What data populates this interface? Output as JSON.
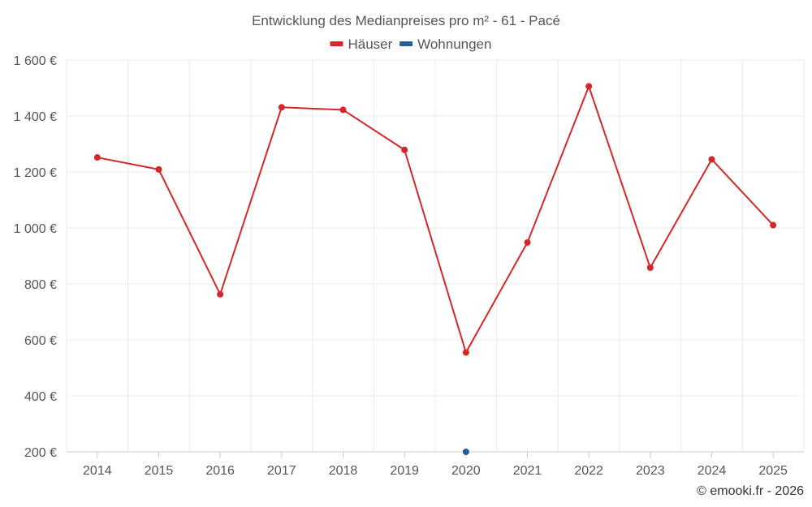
{
  "colors": {
    "background": "#ffffff",
    "grid": "#ebebeb",
    "axis": "#cccccc",
    "text": "#555555"
  },
  "credit": "© emooki.fr - 2026",
  "chart_data": {
    "type": "line",
    "title": "Entwicklung des Medianpreises pro m² - 61 - Pacé",
    "xlabel": "",
    "ylabel": "",
    "categories": [
      "2014",
      "2015",
      "2016",
      "2017",
      "2018",
      "2019",
      "2020",
      "2021",
      "2022",
      "2023",
      "2024",
      "2025"
    ],
    "ylim": [
      200,
      1600
    ],
    "yticks": [
      200,
      400,
      600,
      800,
      1000,
      1200,
      1400,
      1600
    ],
    "ytick_labels": [
      "200 €",
      "400 €",
      "600 €",
      "800 €",
      "1 000 €",
      "1 200 €",
      "1 400 €",
      "1 600 €"
    ],
    "grid": true,
    "legend": "top-center",
    "series": [
      {
        "name": "Häuser",
        "color": "#d62728",
        "values": [
          1252,
          1209,
          763,
          1431,
          1422,
          1279,
          555,
          948,
          1506,
          858,
          1245,
          1010
        ]
      },
      {
        "name": "Wohnungen",
        "color": "#1f5f9a",
        "values": [
          null,
          null,
          null,
          null,
          null,
          null,
          200,
          null,
          null,
          null,
          null,
          null
        ]
      }
    ]
  }
}
